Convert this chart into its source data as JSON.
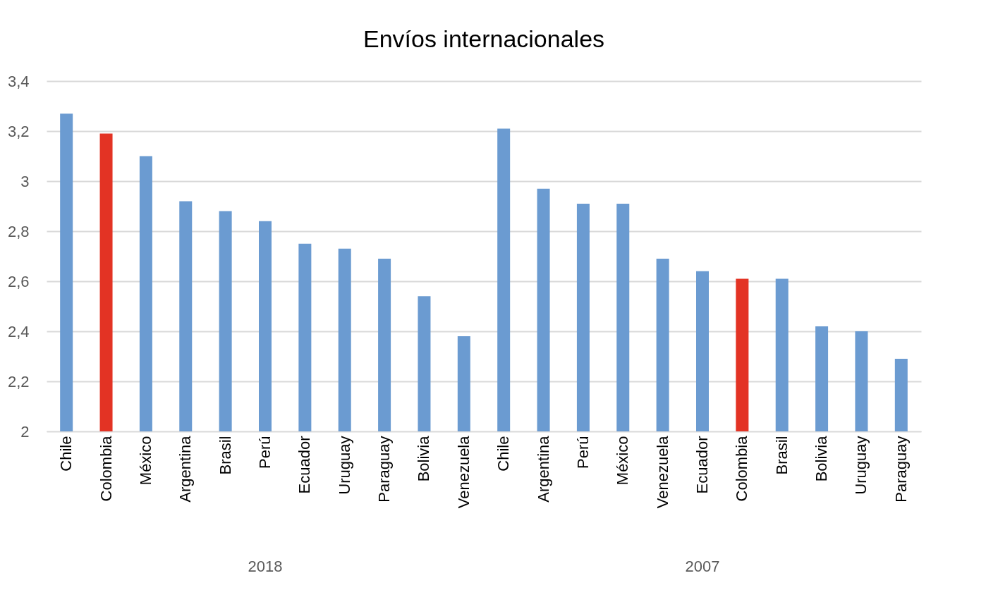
{
  "chart_data": {
    "type": "bar",
    "title": "Envíos internacionales",
    "categories": [
      "Chile",
      "Colombia",
      "México",
      "Argentina",
      "Brasil",
      "Perú",
      "Ecuador",
      "Uruguay",
      "Paraguay",
      "Bolivia",
      "Venezuela",
      "Chile",
      "Argentina",
      "Perú",
      "México",
      "Venezuela",
      "Ecuador",
      "Colombia",
      "Brasil",
      "Bolivia",
      "Uruguay",
      "Paraguay"
    ],
    "values": [
      3.27,
      3.19,
      3.1,
      2.92,
      2.88,
      2.84,
      2.75,
      2.73,
      2.69,
      2.54,
      2.38,
      3.21,
      2.97,
      2.91,
      2.91,
      2.69,
      2.64,
      2.61,
      2.61,
      2.42,
      2.4,
      2.29
    ],
    "colors": [
      "#6b9bd1",
      "#e33324",
      "#6b9bd1",
      "#6b9bd1",
      "#6b9bd1",
      "#6b9bd1",
      "#6b9bd1",
      "#6b9bd1",
      "#6b9bd1",
      "#6b9bd1",
      "#6b9bd1",
      "#6b9bd1",
      "#6b9bd1",
      "#6b9bd1",
      "#6b9bd1",
      "#6b9bd1",
      "#6b9bd1",
      "#e33324",
      "#6b9bd1",
      "#6b9bd1",
      "#6b9bd1",
      "#6b9bd1"
    ],
    "ylim": [
      2,
      3.4
    ],
    "yticks": [
      2,
      {
        "value": 2.2,
        "label": "2,2"
      },
      {
        "value": 2.4,
        "label": "2,4"
      },
      {
        "value": 2.6,
        "label": "2,6"
      },
      {
        "value": 2.8,
        "label": "2,8"
      },
      3,
      {
        "value": 3.2,
        "label": "3,2"
      },
      {
        "value": 3.4,
        "label": "3,4"
      }
    ],
    "grid": "y",
    "annotations": [
      "2018",
      "2007"
    ]
  }
}
